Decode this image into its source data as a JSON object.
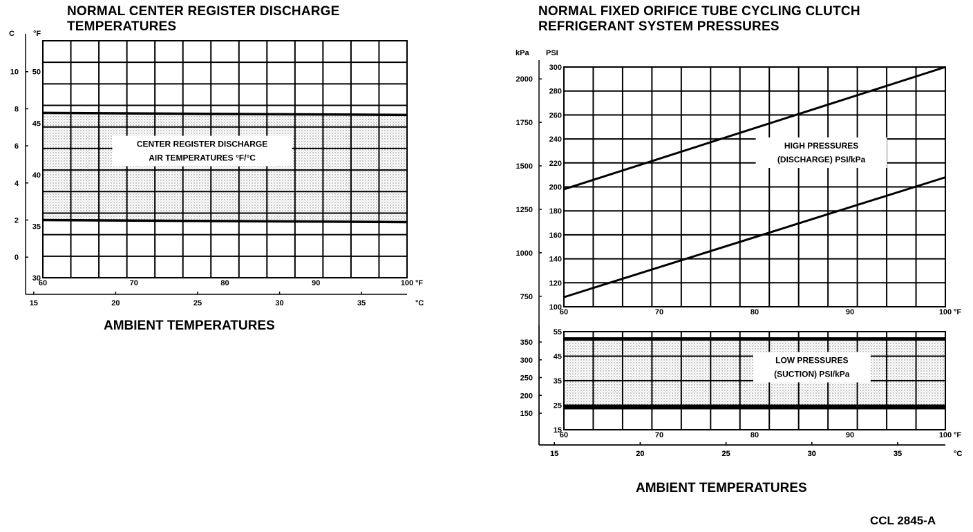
{
  "chart_data": [
    {
      "type": "area",
      "title": "NORMAL CENTER REGISTER DISCHARGE TEMPERATURES",
      "xlabel": "AMBIENT TEMPERATURES",
      "x_unit_f": "°F",
      "x_unit_c": "°C",
      "y_unit_c": "C",
      "y_unit_f": "°F",
      "xlim": [
        60,
        100
      ],
      "ylim": [
        30,
        53
      ],
      "x_ticks_f": [
        60,
        70,
        80,
        90,
        100
      ],
      "x_ticks_c": [
        15,
        20,
        25,
        30,
        35
      ],
      "y_ticks_f": [
        30,
        35,
        40,
        45,
        50
      ],
      "y_ticks_c": [
        0,
        2,
        4,
        6,
        8,
        10
      ],
      "grid": true,
      "annotation": [
        "CENTER REGISTER DISCHARGE",
        "AIR TEMPERATURES °F/°C"
      ],
      "series": [
        {
          "name": "upper",
          "x": [
            60,
            100
          ],
          "y": [
            46.0,
            45.8
          ]
        },
        {
          "name": "lower",
          "x": [
            60,
            100
          ],
          "y": [
            35.6,
            35.4
          ]
        }
      ]
    },
    {
      "type": "line",
      "title": "NORMAL FIXED ORIFICE TUBE CYCLING CLUTCH REFRIGERANT SYSTEM PRESSURES",
      "xlabel": "AMBIENT TEMPERATURES",
      "x_unit_f": "°F",
      "x_unit_c": "°C",
      "y_unit_kpa": "kPa",
      "y_unit_psi": "PSI",
      "xlim": [
        60,
        100
      ],
      "ylim": [
        100,
        300
      ],
      "x_ticks_f": [
        60,
        70,
        80,
        90,
        100
      ],
      "x_ticks_c": [
        15,
        20,
        25,
        30,
        35
      ],
      "y_ticks_psi": [
        100,
        120,
        140,
        160,
        180,
        200,
        220,
        240,
        260,
        280,
        300
      ],
      "y_ticks_kpa": [
        750,
        1000,
        1250,
        1500,
        1750,
        2000
      ],
      "grid": true,
      "annotation": [
        "HIGH PRESSURES",
        "(DISCHARGE) PSI/kPa"
      ],
      "series": [
        {
          "name": "upper",
          "x": [
            60,
            100
          ],
          "y": [
            198,
            300
          ]
        },
        {
          "name": "lower",
          "x": [
            60,
            100
          ],
          "y": [
            108,
            208
          ]
        }
      ]
    },
    {
      "type": "area",
      "title": "",
      "xlabel": "AMBIENT TEMPERATURES",
      "x_unit_f": "°F",
      "x_unit_c": "°C",
      "xlim": [
        60,
        100
      ],
      "ylim": [
        15,
        55
      ],
      "x_ticks_f": [
        60,
        70,
        80,
        90,
        100
      ],
      "x_ticks_c": [
        15,
        20,
        25,
        30,
        35
      ],
      "y_ticks_psi": [
        15,
        25,
        35,
        45,
        55
      ],
      "y_ticks_kpa": [
        150,
        200,
        250,
        300,
        350
      ],
      "grid": true,
      "annotation": [
        "LOW PRESSURES",
        "(SUCTION) PSI/kPa"
      ],
      "series": [
        {
          "name": "upper",
          "x": [
            60,
            100
          ],
          "y": [
            52,
            52
          ]
        },
        {
          "name": "lower",
          "x": [
            60,
            100
          ],
          "y": [
            24,
            24
          ]
        }
      ]
    }
  ],
  "labels": {
    "left_title_line1": "NORMAL CENTER REGISTER DISCHARGE",
    "left_title_line2": "TEMPERATURES",
    "right_title_line1": "NORMAL FIXED ORIFICE TUBE CYCLING CLUTCH",
    "right_title_line2": "REFRIGERANT SYSTEM PRESSURES",
    "left_xtitle": "AMBIENT TEMPERATURES",
    "right_xtitle": "AMBIENT TEMPERATURES",
    "code": "CCL 2845-A"
  }
}
